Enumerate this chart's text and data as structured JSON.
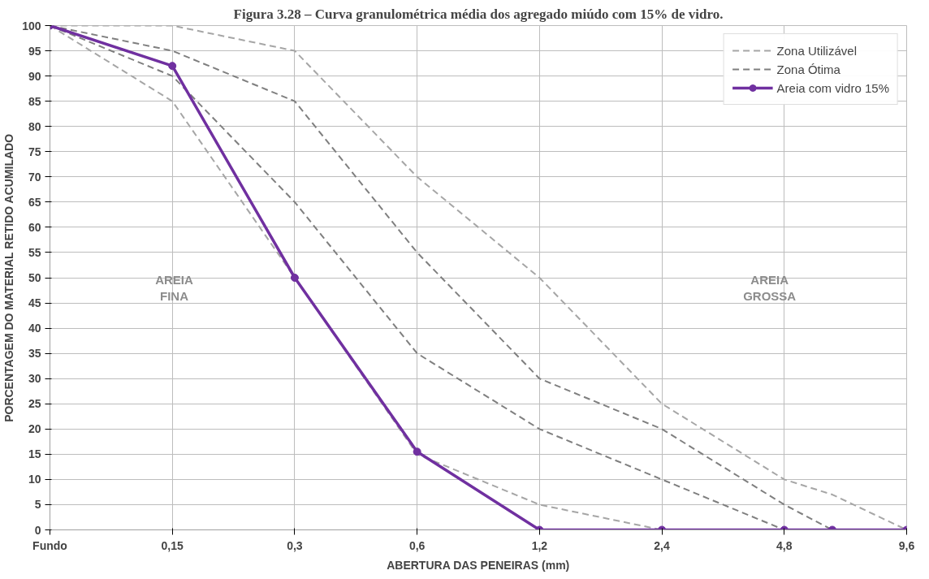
{
  "chart_data": {
    "type": "line",
    "title": "Figura 3.28 – Curva granulométrica média dos agregado miúdo com 15% de vidro.",
    "xlabel": "ABERTURA DAS PENEIRAS (mm)",
    "ylabel": "PORCENTAGEM DO MATERIAL RETIDO ACUMILADO",
    "log": "x",
    "xlim": [
      0.075,
      9.6
    ],
    "xticks": [
      {
        "value": 0.075,
        "label": "Fundo"
      },
      {
        "value": 0.15,
        "label": "0,15"
      },
      {
        "value": 0.3,
        "label": "0,3"
      },
      {
        "value": 0.6,
        "label": "0,6"
      },
      {
        "value": 1.2,
        "label": "1,2"
      },
      {
        "value": 2.4,
        "label": "2,4"
      },
      {
        "value": 4.8,
        "label": "4,8"
      },
      {
        "value": 9.6,
        "label": "9,6"
      }
    ],
    "ylim": [
      0,
      100
    ],
    "yticks": [
      0,
      5,
      10,
      15,
      20,
      25,
      30,
      35,
      40,
      45,
      50,
      55,
      60,
      65,
      70,
      75,
      80,
      85,
      90,
      95,
      100
    ],
    "grid": true,
    "legend": "top right",
    "annotations": [
      "AREIA FINA",
      "AREIA GROSSA"
    ],
    "series": [
      {
        "name": "Zona Utilizável",
        "color": "#a6a6a6",
        "line_style": "dashed",
        "marker": "none",
        "x": [
          0.075,
          0.15,
          0.3,
          0.6,
          1.2,
          2.4,
          4.8,
          6.3,
          9.6
        ],
        "values": [
          100,
          100,
          95,
          70,
          50,
          25,
          10,
          7,
          0
        ]
      },
      {
        "color": "#a6a6a6",
        "line_style": "dashed",
        "marker": "none",
        "x": [
          0.075,
          0.15,
          0.3,
          0.6,
          1.2,
          2.4,
          4.8
        ],
        "values": [
          100,
          85,
          50,
          15,
          5,
          0,
          0
        ]
      },
      {
        "name": "Zona Ótima",
        "color": "#7f7f7f",
        "line_style": "dashed",
        "marker": "none",
        "x": [
          0.075,
          0.15,
          0.3,
          0.6,
          1.2,
          2.4,
          4.8,
          6.3
        ],
        "values": [
          100,
          95,
          85,
          55,
          30,
          20,
          5,
          0
        ]
      },
      {
        "color": "#7f7f7f",
        "line_style": "dashed",
        "marker": "none",
        "x": [
          0.075,
          0.15,
          0.3,
          0.6,
          1.2,
          2.4,
          4.8
        ],
        "values": [
          100,
          90,
          65,
          35,
          20,
          10,
          0
        ]
      },
      {
        "name": "Areia com vidro 15%",
        "color": "#7030a0",
        "line_style": "solid",
        "marker": "circle",
        "x": [
          0.075,
          0.15,
          0.3,
          0.6,
          1.2,
          2.4,
          4.8,
          6.3,
          9.6
        ],
        "values": [
          100,
          92,
          50,
          15.5,
          0,
          0,
          0,
          0,
          0
        ]
      }
    ]
  }
}
